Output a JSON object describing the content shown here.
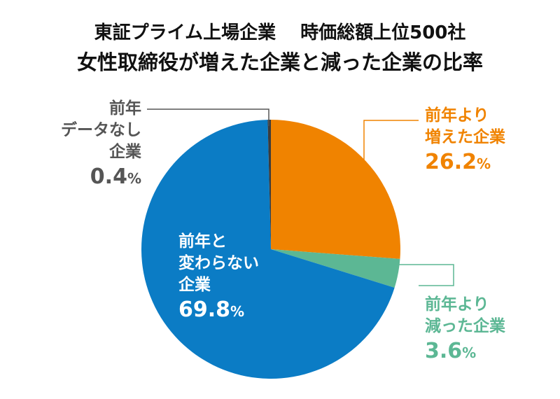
{
  "chart_data": {
    "type": "pie",
    "title": [
      "東証プライム上場企業　 時価総額上位500社",
      "女性取締役が増えた企業と減った企業の比率"
    ],
    "start_angle": "12 o'clock",
    "direction": "clockwise",
    "slices": [
      {
        "label": [
          "前年より",
          "増えた企業"
        ],
        "value": 26.2,
        "display": "26.2",
        "unit": "%",
        "color": "#F08300"
      },
      {
        "label": [
          "前年より",
          "減った企業"
        ],
        "value": 3.6,
        "display": "3.6",
        "unit": "%",
        "color": "#5CB794"
      },
      {
        "label": [
          "前年と",
          "変わらない",
          "企業"
        ],
        "value": 69.8,
        "display": "69.8",
        "unit": "%",
        "color": "#0B7CC5"
      },
      {
        "label": [
          "前年",
          "データなし",
          "企業"
        ],
        "value": 0.4,
        "display": "0.4",
        "unit": "%",
        "color": "#3C3C3C"
      }
    ]
  }
}
